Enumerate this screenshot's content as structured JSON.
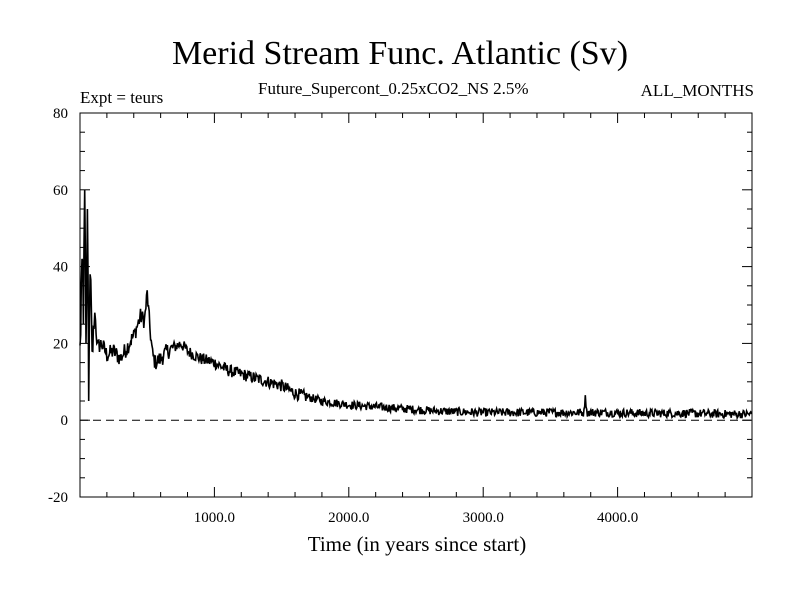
{
  "chart_data": {
    "type": "line",
    "title": "Merid Stream Func. Atlantic (Sv)",
    "subtitle": "Future_Supercont_0.25xCO2_NS 2.5%",
    "left_annotation": "Expt = teurs",
    "right_annotation": "ALL_MONTHS",
    "xlabel": "Time (in years since start)",
    "ylabel": "",
    "xlim": [
      0,
      5000
    ],
    "ylim": [
      -20,
      80
    ],
    "x_ticks": [
      1000,
      2000,
      3000,
      4000
    ],
    "x_tick_labels": [
      "1000.0",
      "2000.0",
      "3000.0",
      "4000.0"
    ],
    "y_ticks": [
      -20,
      0,
      20,
      40,
      60,
      80
    ],
    "y_tick_labels": [
      "-20",
      "0",
      "20",
      "40",
      "60",
      "80"
    ],
    "reference_line": 0,
    "series": [
      {
        "x": [
          0,
          15,
          25,
          35,
          45,
          55,
          65,
          75,
          90,
          110,
          130,
          160,
          200,
          250,
          300,
          350,
          400,
          450,
          480,
          500,
          520,
          540,
          560,
          600,
          650,
          700,
          750,
          800,
          900,
          1000,
          1100,
          1200,
          1300,
          1400,
          1500,
          1600,
          1700,
          1800,
          1900,
          2000,
          2200,
          2400,
          2600,
          2800,
          3000,
          3200,
          3400,
          3600,
          3750,
          3760,
          3770,
          3900,
          4200,
          4500,
          4800,
          5000
        ],
        "y": [
          17,
          42,
          25,
          60,
          20,
          55,
          5,
          38,
          18,
          28,
          19,
          20,
          17,
          18,
          16,
          19,
          22,
          27,
          26,
          33,
          24,
          17,
          15,
          16,
          18,
          19,
          20,
          18,
          16,
          15,
          13,
          12,
          11,
          10,
          9,
          7,
          6,
          5,
          4.5,
          4,
          3.5,
          3,
          2.5,
          2.2,
          2,
          2,
          2,
          2,
          2,
          7,
          2,
          2,
          1.8,
          1.8,
          1.6,
          1.6
        ]
      }
    ]
  }
}
